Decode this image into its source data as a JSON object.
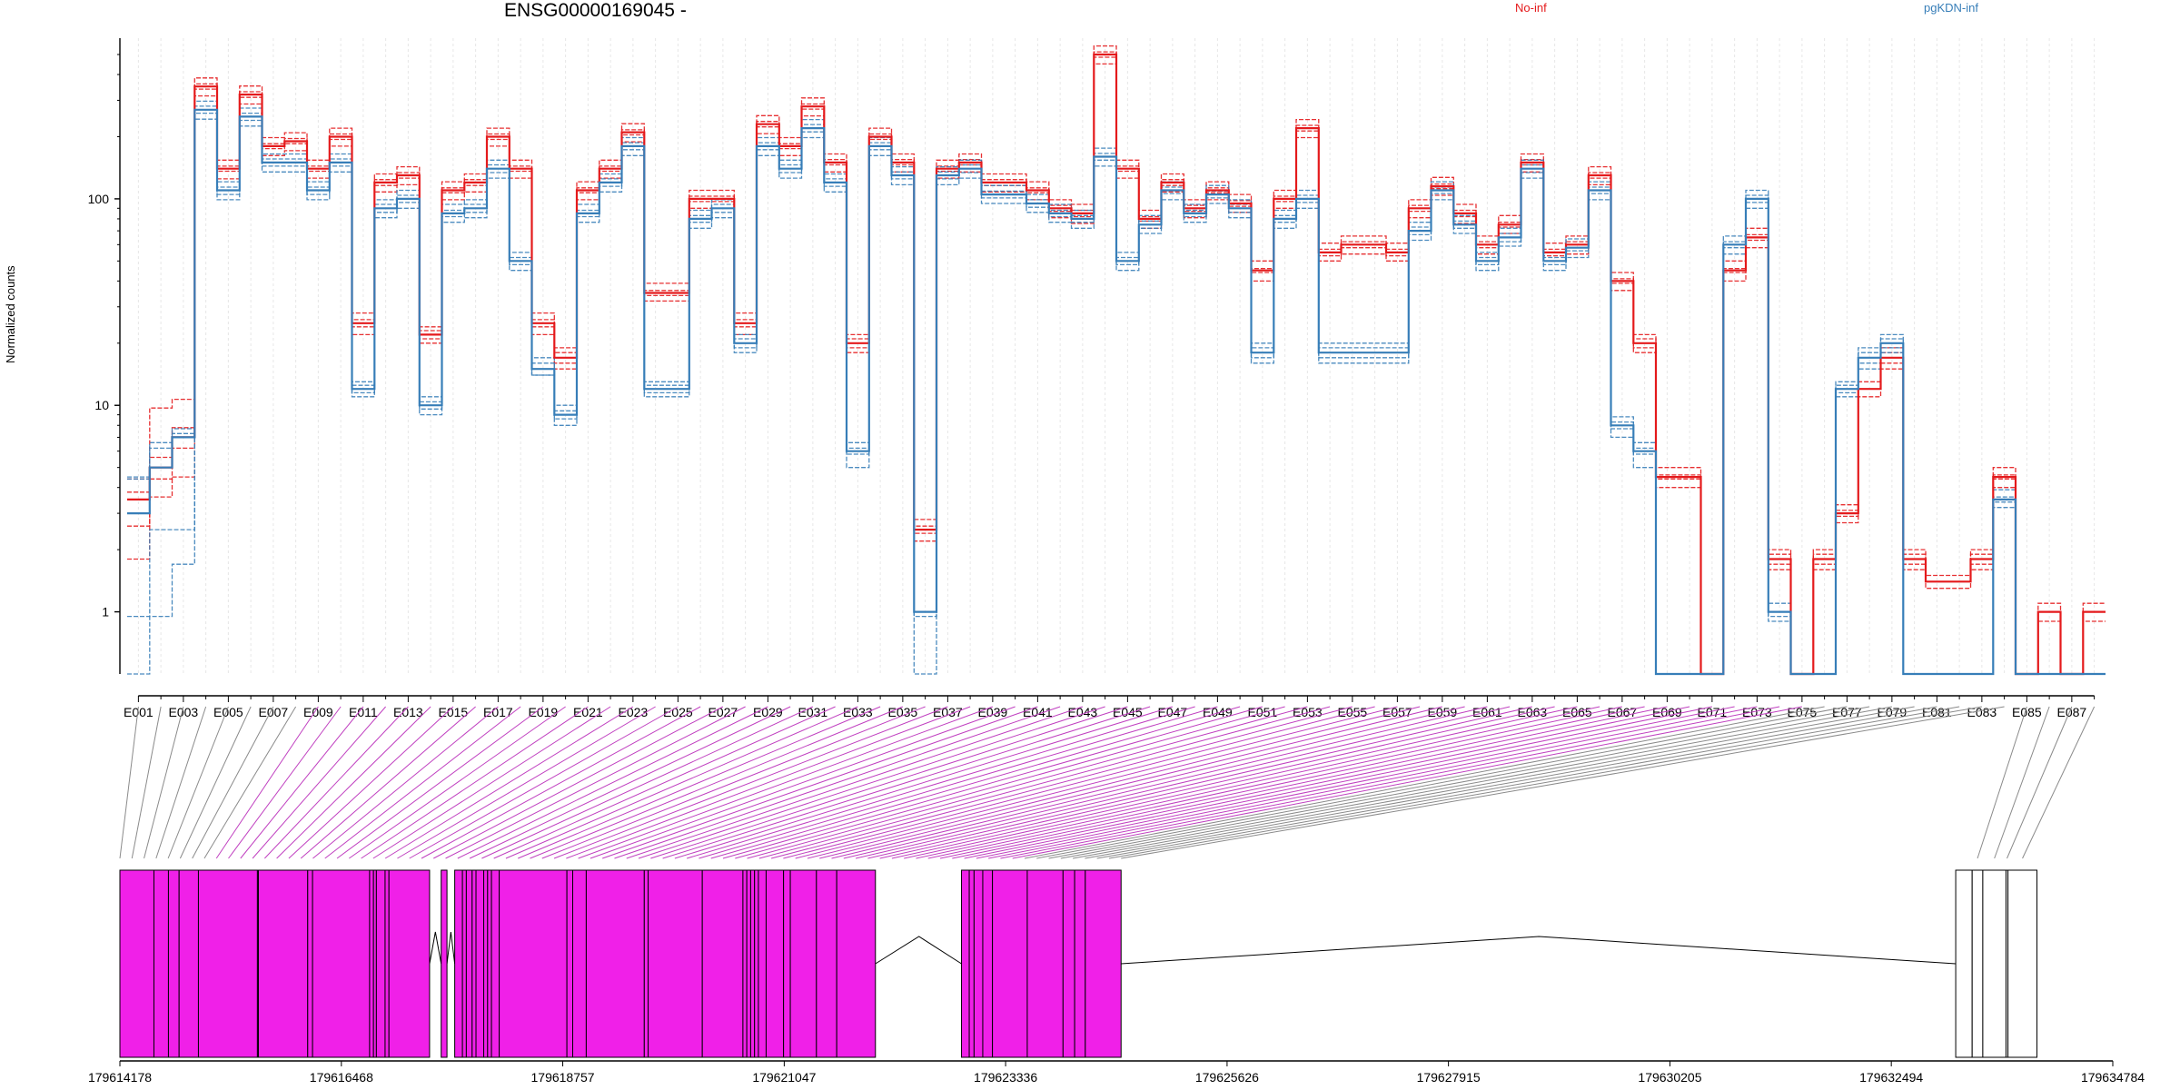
{
  "chart_data": {
    "type": "line",
    "title": "ENSG00000169045 -",
    "ylabel": "Normalized counts",
    "yscale": "log",
    "ylim": [
      0.5,
      600
    ],
    "yticks": [
      1,
      10,
      100
    ],
    "ytick_labels": [
      "1",
      "10",
      "100"
    ],
    "exon_count": 88,
    "xtick_labels": [
      "E001",
      "E003",
      "E005",
      "E007",
      "E009",
      "E011",
      "E013",
      "E015",
      "E017",
      "E019",
      "E021",
      "E023",
      "E025",
      "E027",
      "E029",
      "E031",
      "E033",
      "E035",
      "E037",
      "E039",
      "E041",
      "E043",
      "E045",
      "E047",
      "E049",
      "E051",
      "E053",
      "E055",
      "E057",
      "E059",
      "E061",
      "E063",
      "E065",
      "E067",
      "E069",
      "E071",
      "E073",
      "E075",
      "E077",
      "E079",
      "E081",
      "E083",
      "E085",
      "E087"
    ],
    "colors": {
      "No-inf": "#e41a1c",
      "pgKDN-inf": "#377eb8",
      "differential_exon": "#f020e8",
      "other_exon": "#c8c8c8",
      "connector_gray": "#8a8a8a",
      "connector_magenta": "#c040c0"
    },
    "series_meta": [
      {
        "group": "No-inf",
        "label": "No-inf"
      },
      {
        "group": "pgKDN-inf",
        "label": "pgKDN-inf"
      }
    ],
    "group_profiles": {
      "No-inf": [
        3.5,
        5,
        7,
        350,
        140,
        320,
        180,
        190,
        140,
        200,
        25,
        120,
        130,
        22,
        110,
        120,
        200,
        140,
        25,
        17,
        110,
        140,
        210,
        35,
        35,
        100,
        100,
        25,
        230,
        180,
        280,
        150,
        20,
        200,
        150,
        2.5,
        140,
        150,
        120,
        120,
        110,
        90,
        85,
        500,
        140,
        80,
        120,
        90,
        110,
        95,
        45,
        100,
        220,
        55,
        60,
        60,
        55,
        90,
        115,
        85,
        60,
        75,
        150,
        55,
        60,
        130,
        40,
        20,
        4.5,
        4.5,
        0.5,
        45,
        65,
        1.8,
        0.5,
        1.8,
        3,
        12,
        17,
        1.8,
        1.4,
        1.4,
        1.8,
        4.5,
        0.5,
        1,
        0.5,
        1
      ],
      "pgKDN-inf": [
        3,
        5,
        7,
        270,
        110,
        250,
        150,
        150,
        110,
        150,
        12,
        90,
        100,
        10,
        85,
        90,
        140,
        50,
        15,
        9,
        85,
        120,
        180,
        12,
        12,
        80,
        90,
        20,
        180,
        140,
        220,
        120,
        6,
        180,
        130,
        1,
        130,
        140,
        105,
        105,
        95,
        85,
        80,
        160,
        50,
        75,
        110,
        85,
        105,
        90,
        18,
        80,
        100,
        18,
        18,
        18,
        18,
        70,
        110,
        75,
        50,
        65,
        140,
        50,
        58,
        110,
        8,
        6,
        0.5,
        0.5,
        0.5,
        60,
        100,
        1,
        0.5,
        0.5,
        12,
        17,
        20,
        0.5,
        0.5,
        0.5,
        0.5,
        3.5,
        0.5,
        0.5,
        0.5,
        0.5
      ]
    },
    "series": [
      {
        "group": "No-inf",
        "values": [
          1.8,
          3.6,
          4.5,
          315,
          125,
          288,
          162,
          171,
          126,
          180,
          22,
          108,
          117,
          20,
          99,
          108,
          180,
          126,
          22,
          15,
          99,
          126,
          189,
          32,
          32,
          90,
          90,
          22,
          207,
          162,
          252,
          135,
          18,
          180,
          135,
          2.2,
          126,
          135,
          108,
          108,
          99,
          81,
          76,
          450,
          126,
          72,
          108,
          81,
          99,
          86,
          40,
          90,
          198,
          50,
          54,
          54,
          50,
          81,
          104,
          76,
          54,
          68,
          135,
          50,
          54,
          117,
          36,
          18,
          4,
          4,
          0.5,
          40,
          58,
          1.6,
          0.5,
          1.6,
          2.7,
          11,
          15,
          1.6,
          1.3,
          1.3,
          1.6,
          4,
          0.5,
          0.9,
          0.5,
          0.9
        ]
      },
      {
        "group": "No-inf",
        "values": [
          2.6,
          4.4,
          6.2,
          340,
          136,
          310,
          175,
          185,
          136,
          194,
          24,
          116,
          126,
          21,
          107,
          116,
          194,
          136,
          24,
          16,
          107,
          136,
          204,
          34,
          34,
          97,
          97,
          24,
          223,
          175,
          272,
          146,
          19,
          194,
          146,
          2.4,
          136,
          146,
          116,
          116,
          107,
          87,
          82,
          485,
          136,
          78,
          116,
          87,
          107,
          92,
          44,
          97,
          213,
          53,
          58,
          58,
          53,
          87,
          112,
          82,
          58,
          73,
          146,
          53,
          58,
          126,
          39,
          19,
          4.4,
          4.4,
          0.5,
          44,
          63,
          1.7,
          0.5,
          1.7,
          2.9,
          12,
          16,
          1.7,
          1.4,
          1.4,
          1.7,
          4.4,
          0.5,
          1,
          0.5,
          1
        ]
      },
      {
        "group": "No-inf",
        "values": [
          3.5,
          5,
          7,
          350,
          140,
          320,
          180,
          190,
          140,
          200,
          25,
          120,
          130,
          22,
          110,
          120,
          200,
          140,
          25,
          17,
          110,
          140,
          210,
          35,
          35,
          100,
          100,
          25,
          230,
          180,
          280,
          150,
          20,
          200,
          150,
          2.5,
          140,
          150,
          120,
          120,
          110,
          90,
          85,
          500,
          140,
          80,
          120,
          90,
          110,
          95,
          45,
          100,
          220,
          55,
          60,
          60,
          55,
          90,
          115,
          85,
          60,
          75,
          150,
          55,
          60,
          130,
          40,
          20,
          4.5,
          4.5,
          0.5,
          45,
          65,
          1.8,
          0.5,
          1.8,
          3,
          12,
          17,
          1.8,
          1.4,
          1.4,
          1.8,
          4.5,
          0.5,
          1,
          0.5,
          1
        ]
      },
      {
        "group": "No-inf",
        "values": [
          4.4,
          5.6,
          7.8,
          360,
          144,
          330,
          185,
          196,
          144,
          206,
          26,
          124,
          134,
          23,
          113,
          124,
          206,
          144,
          26,
          18,
          113,
          144,
          216,
          36,
          36,
          103,
          103,
          26,
          237,
          185,
          288,
          155,
          21,
          206,
          155,
          2.6,
          144,
          155,
          124,
          124,
          113,
          93,
          88,
          515,
          144,
          82,
          124,
          93,
          113,
          98,
          46,
          103,
          227,
          57,
          62,
          62,
          57,
          93,
          118,
          88,
          62,
          77,
          155,
          57,
          62,
          134,
          41,
          21,
          4.6,
          4.6,
          0.5,
          46,
          67,
          1.9,
          0.5,
          1.9,
          3.1,
          12,
          18,
          1.9,
          1.4,
          1.4,
          1.9,
          4.6,
          0.5,
          1,
          0.5,
          1
        ]
      },
      {
        "group": "No-inf",
        "values": [
          3.8,
          9.7,
          10.7,
          385,
          154,
          352,
          198,
          209,
          154,
          220,
          28,
          132,
          143,
          24,
          121,
          132,
          220,
          154,
          28,
          19,
          121,
          154,
          231,
          39,
          39,
          110,
          110,
          28,
          253,
          198,
          308,
          165,
          22,
          220,
          165,
          2.8,
          154,
          165,
          132,
          132,
          121,
          99,
          94,
          550,
          154,
          88,
          132,
          99,
          121,
          105,
          50,
          110,
          242,
          61,
          66,
          66,
          61,
          99,
          127,
          94,
          66,
          83,
          165,
          61,
          66,
          143,
          44,
          22,
          5,
          5,
          0.5,
          50,
          72,
          2,
          0.5,
          2,
          3.3,
          13,
          19,
          2,
          1.5,
          1.5,
          2,
          5,
          0.5,
          1.1,
          0.5,
          1.1
        ]
      },
      {
        "group": "pgKDN-inf",
        "values": [
          0.5,
          0.95,
          1.7,
          243,
          99,
          225,
          135,
          135,
          99,
          135,
          11,
          81,
          90,
          9,
          77,
          81,
          126,
          45,
          14,
          8,
          77,
          108,
          162,
          11,
          11,
          72,
          81,
          18,
          162,
          126,
          198,
          108,
          5,
          162,
          117,
          0.5,
          117,
          126,
          95,
          95,
          86,
          77,
          72,
          144,
          45,
          68,
          99,
          77,
          95,
          81,
          16,
          72,
          90,
          16,
          16,
          16,
          16,
          63,
          99,
          68,
          45,
          59,
          126,
          45,
          52,
          99,
          7,
          5,
          0.5,
          0.5,
          0.5,
          54,
          90,
          0.9,
          0.5,
          0.5,
          11,
          15,
          18,
          0.5,
          0.5,
          0.5,
          0.5,
          3.2,
          0.5,
          0.5,
          0.5,
          0.5
        ]
      },
      {
        "group": "pgKDN-inf",
        "values": [
          0.95,
          2.5,
          2.5,
          260,
          105,
          240,
          144,
          144,
          105,
          144,
          11.5,
          86,
          96,
          9.6,
          82,
          86,
          134,
          48,
          14,
          8.6,
          82,
          115,
          173,
          11.5,
          11.5,
          77,
          86,
          19,
          173,
          134,
          211,
          115,
          5.8,
          173,
          125,
          0.95,
          125,
          134,
          101,
          101,
          91,
          82,
          77,
          154,
          48,
          72,
          106,
          82,
          101,
          86,
          17,
          77,
          96,
          17,
          17,
          17,
          17,
          67,
          106,
          72,
          48,
          62,
          134,
          48,
          56,
          106,
          7.7,
          5.8,
          0.5,
          0.5,
          0.5,
          58,
          96,
          0.95,
          0.5,
          0.5,
          11.5,
          16,
          19,
          0.5,
          0.5,
          0.5,
          0.5,
          3.4,
          0.5,
          0.5,
          0.5,
          0.5
        ]
      },
      {
        "group": "pgKDN-inf",
        "values": [
          3,
          5,
          7,
          270,
          110,
          250,
          150,
          150,
          110,
          150,
          12,
          90,
          100,
          10,
          85,
          90,
          140,
          50,
          15,
          9,
          85,
          120,
          180,
          12,
          12,
          80,
          90,
          20,
          180,
          140,
          220,
          120,
          6,
          180,
          130,
          1,
          130,
          140,
          105,
          105,
          95,
          85,
          80,
          160,
          50,
          75,
          110,
          85,
          105,
          90,
          18,
          80,
          100,
          18,
          18,
          18,
          18,
          70,
          110,
          75,
          50,
          65,
          140,
          50,
          58,
          110,
          8,
          6,
          0.5,
          0.5,
          0.5,
          60,
          100,
          1,
          0.5,
          0.5,
          12,
          17,
          20,
          0.5,
          0.5,
          0.5,
          0.5,
          3.5,
          0.5,
          0.5,
          0.5,
          0.5
        ]
      },
      {
        "group": "pgKDN-inf",
        "values": [
          4.4,
          6.2,
          7.3,
          281,
          114,
          260,
          156,
          156,
          114,
          156,
          12.5,
          94,
          104,
          10.4,
          88,
          94,
          146,
          52,
          16,
          9.4,
          88,
          125,
          187,
          12.5,
          12.5,
          83,
          94,
          21,
          187,
          146,
          229,
          125,
          6.2,
          187,
          135,
          1,
          135,
          146,
          109,
          109,
          99,
          88,
          83,
          166,
          52,
          78,
          114,
          88,
          109,
          94,
          19,
          83,
          104,
          19,
          19,
          19,
          19,
          73,
          114,
          78,
          52,
          68,
          146,
          52,
          60,
          114,
          8.3,
          6.2,
          0.5,
          0.5,
          0.5,
          62,
          104,
          1,
          0.5,
          0.5,
          12.5,
          18,
          21,
          0.5,
          0.5,
          0.5,
          0.5,
          3.6,
          0.5,
          0.5,
          0.5,
          0.5
        ]
      },
      {
        "group": "pgKDN-inf",
        "values": [
          4.5,
          6.6,
          7.7,
          297,
          121,
          275,
          165,
          165,
          121,
          165,
          13,
          99,
          110,
          11,
          94,
          99,
          154,
          55,
          17,
          10,
          94,
          132,
          198,
          13,
          13,
          88,
          99,
          22,
          198,
          154,
          242,
          132,
          6.6,
          198,
          143,
          1,
          143,
          154,
          116,
          116,
          105,
          94,
          88,
          176,
          55,
          83,
          121,
          94,
          116,
          99,
          20,
          88,
          110,
          20,
          20,
          20,
          20,
          77,
          121,
          83,
          55,
          72,
          154,
          55,
          64,
          121,
          8.8,
          6.6,
          0.5,
          0.5,
          0.5,
          66,
          110,
          1.1,
          0.5,
          0.5,
          13,
          19,
          22,
          0.5,
          0.5,
          0.5,
          0.5,
          3.9,
          0.5,
          0.5,
          0.5,
          0.5
        ]
      }
    ],
    "model": {
      "xlabels": [
        "179614178",
        "179616468",
        "179618757",
        "179621047",
        "179623336",
        "179625626",
        "179627915",
        "179630205",
        "179632494",
        "179634784"
      ],
      "gene_range": [
        179614178,
        179634784
      ],
      "differential_exons": [
        4,
        5,
        6,
        7,
        9,
        10,
        11,
        12,
        13,
        14,
        17,
        18,
        19,
        20,
        21,
        22,
        23,
        24,
        25,
        26,
        27,
        28,
        29,
        30,
        31,
        32,
        33,
        34,
        35,
        38,
        39,
        40,
        41,
        42,
        43,
        44,
        45,
        46,
        47,
        48,
        49,
        50,
        51,
        52,
        53,
        54,
        55,
        56,
        57,
        58,
        59,
        60,
        61,
        62,
        63,
        64,
        65,
        66,
        67,
        68,
        69,
        70,
        71,
        72,
        73,
        74,
        75,
        76,
        77
      ]
    },
    "legend": [
      "No-inf",
      "pgKDN-inf"
    ]
  }
}
